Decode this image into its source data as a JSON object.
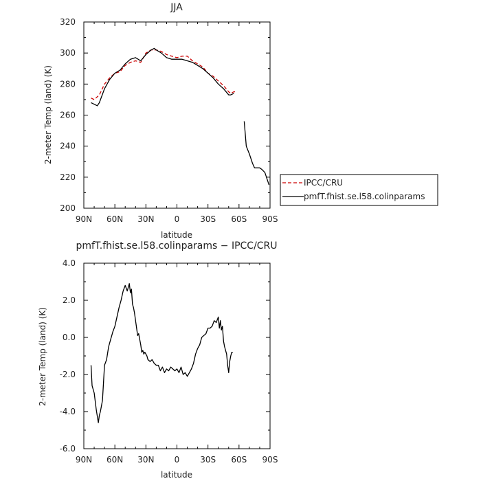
{
  "chart_data": [
    {
      "type": "line",
      "title": "JJA",
      "xlabel": "latitude",
      "ylabel": "2-meter Temp (land) (K)",
      "xlim": [
        90,
        -90
      ],
      "ylim": [
        200,
        320
      ],
      "x_ticks": [
        {
          "value": 90,
          "label": "90N"
        },
        {
          "value": 60,
          "label": "60N"
        },
        {
          "value": 30,
          "label": "30N"
        },
        {
          "value": 0,
          "label": "0"
        },
        {
          "value": -30,
          "label": "30S"
        },
        {
          "value": -60,
          "label": "60S"
        },
        {
          "value": -90,
          "label": "90S"
        }
      ],
      "y_ticks": [
        {
          "value": 320,
          "label": "320"
        },
        {
          "value": 300,
          "label": "300"
        },
        {
          "value": 280,
          "label": "280"
        },
        {
          "value": 260,
          "label": "260"
        },
        {
          "value": 240,
          "label": "240"
        },
        {
          "value": 220,
          "label": "220"
        },
        {
          "value": 200,
          "label": "200"
        }
      ],
      "legend_position": "bottom-right outside",
      "series": [
        {
          "name": "IPCC/CRU",
          "color": "#cc0000",
          "dash": "dashed",
          "x": [
            83,
            80,
            75,
            70,
            65,
            60,
            55,
            50,
            45,
            40,
            35,
            30,
            25,
            20,
            15,
            10,
            5,
            0,
            -5,
            -10,
            -15,
            -20,
            -25,
            -30,
            -35,
            -40,
            -45,
            -50,
            -52,
            -55,
            -57
          ],
          "y": [
            271,
            270,
            273,
            280,
            284,
            287,
            288,
            292,
            294,
            295,
            294,
            300,
            302,
            302,
            301,
            299,
            298,
            297,
            298,
            298,
            295,
            293,
            291,
            287,
            285,
            282,
            279,
            275,
            274,
            275,
            275
          ]
        },
        {
          "name": "pmfT.fhist.se.l58.colinparams",
          "color": "#000000",
          "dash": "solid",
          "segments": [
            {
              "x": [
                83,
                80,
                77,
                75,
                70,
                65,
                60,
                55,
                50,
                45,
                40,
                35,
                30,
                25,
                22,
                20,
                15,
                10,
                5,
                0,
                -5,
                -10,
                -15,
                -20,
                -25,
                -30,
                -35,
                -40,
                -45,
                -50,
                -52,
                -55
              ],
              "y": [
                268,
                267,
                266,
                268,
                277,
                283,
                287,
                289,
                293,
                296,
                297,
                295,
                299,
                302,
                303,
                302,
                300,
                297,
                296,
                296,
                296,
                295,
                294,
                292,
                290,
                287,
                284,
                280,
                277,
                273,
                273,
                274
              ]
            },
            {
              "x": [
                -65,
                -66,
                -67,
                -70,
                -73,
                -75,
                -77,
                -80,
                -82,
                -85,
                -87,
                -89
              ],
              "y": [
                256,
                248,
                240,
                235,
                229,
                226,
                226,
                226,
                225,
                223,
                219,
                215
              ]
            }
          ]
        }
      ]
    },
    {
      "type": "line",
      "title": "pmfT.fhist.se.l58.colinparams − IPCC/CRU",
      "xlabel": "latitude",
      "ylabel": "2-meter Temp (land) (K)",
      "xlim": [
        90,
        -90
      ],
      "ylim": [
        -6,
        4
      ],
      "x_ticks": [
        {
          "value": 90,
          "label": "90N"
        },
        {
          "value": 60,
          "label": "60N"
        },
        {
          "value": 30,
          "label": "30N"
        },
        {
          "value": 0,
          "label": "0"
        },
        {
          "value": -30,
          "label": "30S"
        },
        {
          "value": -60,
          "label": "60S"
        },
        {
          "value": -90,
          "label": "90S"
        }
      ],
      "y_ticks": [
        {
          "value": 4,
          "label": "4.0"
        },
        {
          "value": 2,
          "label": "2.0"
        },
        {
          "value": 0,
          "label": "0.0"
        },
        {
          "value": -2,
          "label": "-2.0"
        },
        {
          "value": -4,
          "label": "-4.0"
        },
        {
          "value": -6,
          "label": "-6.0"
        }
      ],
      "series": [
        {
          "name": "pmfT.fhist.se.l58.colinparams − IPCC/CRU",
          "color": "#000000",
          "dash": "solid",
          "x": [
            83,
            82,
            80,
            78,
            76,
            75,
            74,
            72,
            70,
            68,
            66,
            64,
            62,
            60,
            58,
            56,
            54,
            52,
            50,
            48,
            46,
            45,
            44,
            43,
            42,
            41,
            40,
            39,
            38,
            37,
            36,
            35,
            34,
            33,
            32,
            31,
            30,
            29,
            28,
            26,
            24,
            22,
            20,
            18,
            16,
            14,
            12,
            10,
            8,
            6,
            4,
            2,
            0,
            -2,
            -4,
            -6,
            -8,
            -10,
            -12,
            -14,
            -16,
            -18,
            -20,
            -22,
            -24,
            -26,
            -28,
            -30,
            -32,
            -34,
            -36,
            -38,
            -40,
            -41,
            -42,
            -43,
            -44,
            -45,
            -46,
            -47,
            -48,
            -49,
            -50,
            -51,
            -52,
            -53,
            -54
          ],
          "y": [
            -1.5,
            -2.6,
            -3.0,
            -3.9,
            -4.6,
            -4.2,
            -4.0,
            -3.4,
            -1.5,
            -1.2,
            -0.5,
            -0.1,
            0.3,
            0.6,
            1.1,
            1.6,
            2.0,
            2.5,
            2.8,
            2.5,
            2.9,
            2.4,
            2.6,
            1.8,
            1.6,
            1.3,
            0.9,
            0.5,
            0.1,
            0.2,
            -0.1,
            -0.4,
            -0.8,
            -0.7,
            -0.9,
            -0.8,
            -0.9,
            -1.0,
            -1.2,
            -1.3,
            -1.2,
            -1.4,
            -1.5,
            -1.5,
            -1.8,
            -1.6,
            -1.9,
            -1.7,
            -1.8,
            -1.6,
            -1.7,
            -1.8,
            -1.7,
            -1.9,
            -1.6,
            -2.0,
            -1.9,
            -2.1,
            -1.9,
            -1.7,
            -1.4,
            -0.9,
            -0.6,
            -0.4,
            0.0,
            0.1,
            0.2,
            0.5,
            0.5,
            0.6,
            0.9,
            0.8,
            1.1,
            0.5,
            0.9,
            0.4,
            0.6,
            -0.2,
            -0.5,
            -0.7,
            -0.9,
            -1.5,
            -1.9,
            -1.3,
            -1.0,
            -0.8,
            -0.8
          ]
        }
      ]
    }
  ]
}
